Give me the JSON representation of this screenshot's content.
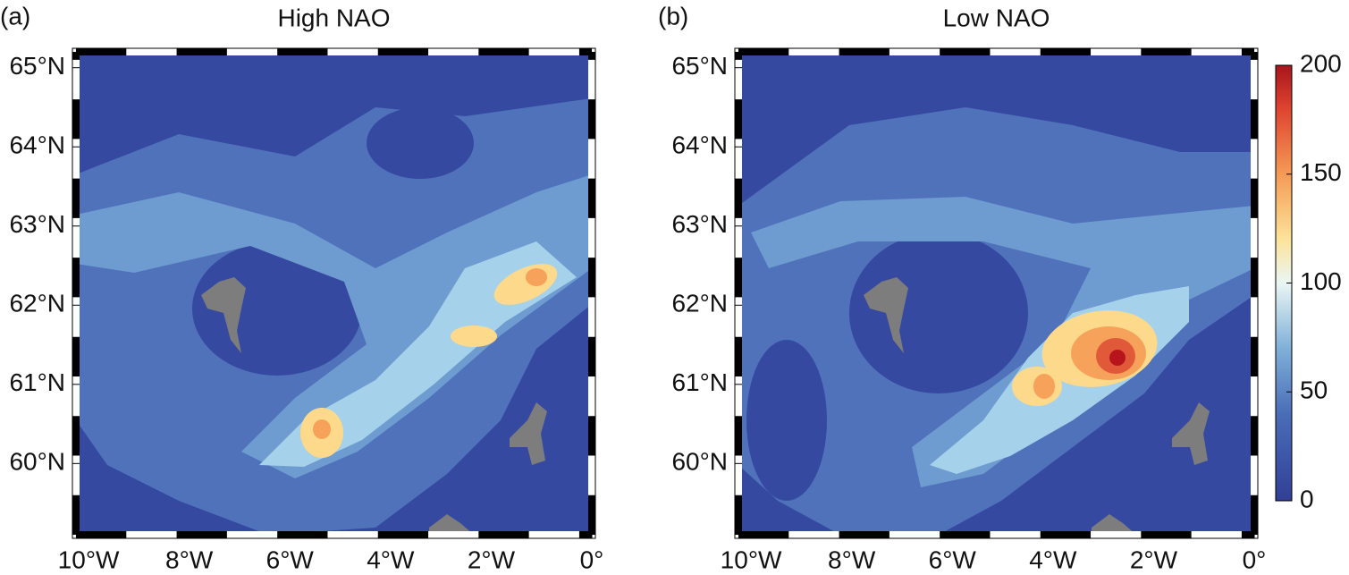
{
  "panels": [
    {
      "label": "(a)",
      "title": "High NAO",
      "xlim": [
        -10.25,
        0
      ],
      "ylim": [
        59.1,
        65.2
      ],
      "xticks": [
        {
          "value": -10,
          "label": "10°W"
        },
        {
          "value": -8,
          "label": "8°W"
        },
        {
          "value": -6,
          "label": "6°W"
        },
        {
          "value": -4,
          "label": "4°W"
        },
        {
          "value": -2,
          "label": "2°W"
        },
        {
          "value": 0,
          "label": "0°"
        }
      ],
      "yticks": [
        {
          "value": 60,
          "label": "60°N"
        },
        {
          "value": 61,
          "label": "61°N"
        },
        {
          "value": 62,
          "label": "62°N"
        },
        {
          "value": 63,
          "label": "63°N"
        },
        {
          "value": 64,
          "label": "64°N"
        },
        {
          "value": 65,
          "label": "65°N"
        }
      ]
    },
    {
      "label": "(b)",
      "title": "Low NAO",
      "xlim": [
        -10.25,
        0
      ],
      "ylim": [
        59.1,
        65.2
      ],
      "xticks": [
        {
          "value": -10,
          "label": "10°W"
        },
        {
          "value": -8,
          "label": "8°W"
        },
        {
          "value": -6,
          "label": "6°W"
        },
        {
          "value": -4,
          "label": "4°W"
        },
        {
          "value": -2,
          "label": "2°W"
        },
        {
          "value": 0,
          "label": "0°"
        }
      ],
      "yticks": [
        {
          "value": 60,
          "label": "60°N"
        },
        {
          "value": 61,
          "label": "61°N"
        },
        {
          "value": 62,
          "label": "62°N"
        },
        {
          "value": 63,
          "label": "63°N"
        },
        {
          "value": 64,
          "label": "64°N"
        },
        {
          "value": 65,
          "label": "65°N"
        }
      ]
    }
  ],
  "colorbar": {
    "lim": [
      0,
      200
    ],
    "ticks": [
      0,
      50,
      100,
      150,
      200
    ]
  }
}
